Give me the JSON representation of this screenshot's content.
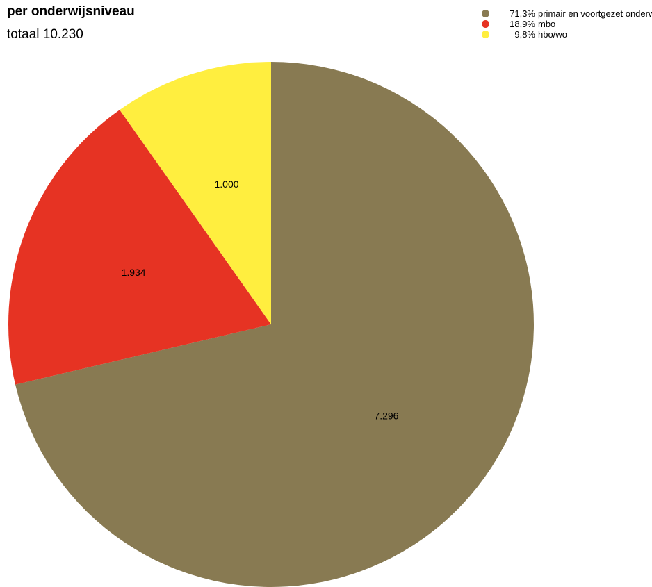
{
  "title": "per onderwijsniveau",
  "subtitle": "totaal 10.230",
  "chart_data": {
    "type": "pie",
    "title": "per onderwijsniveau",
    "subtitle": "totaal 10.230",
    "total": 10230,
    "slices": [
      {
        "label": "primair en voortgezet onderwijs",
        "value": 7296,
        "value_label": "7.296",
        "percent_label": "71,3%",
        "color": "#887A52"
      },
      {
        "label": "mbo",
        "value": 1934,
        "value_label": "1.934",
        "percent_label": "18,9%",
        "color": "#E63323"
      },
      {
        "label": "hbo/wo",
        "value": 1000,
        "value_label": "1.000",
        "percent_label": "9,8%",
        "color": "#FFEE3F"
      }
    ],
    "start_angle": "12 o'clock",
    "direction": "clockwise",
    "legend_position": "top-right"
  }
}
